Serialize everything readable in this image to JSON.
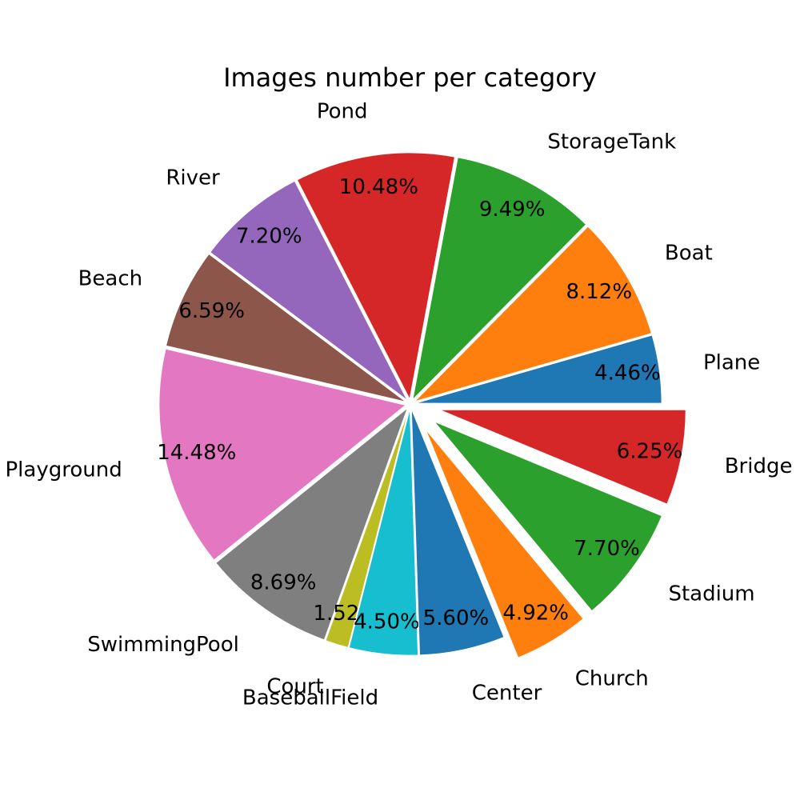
{
  "chart_data": {
    "type": "pie",
    "title": "Images number per category",
    "counterclock": true,
    "slices": [
      {
        "label": "Plane",
        "value": 4.46,
        "pct": "4.46%",
        "color": "#1f77b4",
        "explode": false
      },
      {
        "label": "Boat",
        "value": 8.12,
        "pct": "8.12%",
        "color": "#ff7f0e",
        "explode": false
      },
      {
        "label": "StorageTank",
        "value": 9.49,
        "pct": "9.49%",
        "color": "#2ca02c",
        "explode": false
      },
      {
        "label": "Pond",
        "value": 10.48,
        "pct": "10.48%",
        "color": "#d62728",
        "explode": false
      },
      {
        "label": "River",
        "value": 7.2,
        "pct": "7.20%",
        "color": "#9467bd",
        "explode": false
      },
      {
        "label": "Beach",
        "value": 6.59,
        "pct": "6.59%",
        "color": "#8c564b",
        "explode": false
      },
      {
        "label": "Playground",
        "value": 14.48,
        "pct": "14.48%",
        "color": "#e377c2",
        "explode": false
      },
      {
        "label": "SwimmingPool",
        "value": 8.69,
        "pct": "8.69%",
        "color": "#7f7f7f",
        "explode": false
      },
      {
        "label": "Court",
        "value": 1.52,
        "pct": "1.52%",
        "color": "#bcbd22",
        "explode": false
      },
      {
        "label": "BaseballField",
        "value": 4.5,
        "pct": "4.50%",
        "color": "#17becf",
        "explode": false
      },
      {
        "label": "Center",
        "value": 5.6,
        "pct": "5.60%",
        "color": "#1f77b4",
        "explode": false
      },
      {
        "label": "Church",
        "value": 4.92,
        "pct": "4.92%",
        "color": "#ff7f0e",
        "explode": true
      },
      {
        "label": "Stadium",
        "value": 7.7,
        "pct": "7.70%",
        "color": "#2ca02c",
        "explode": true
      },
      {
        "label": "Bridge",
        "value": 6.25,
        "pct": "6.25%",
        "color": "#d62728",
        "explode": true
      }
    ]
  }
}
